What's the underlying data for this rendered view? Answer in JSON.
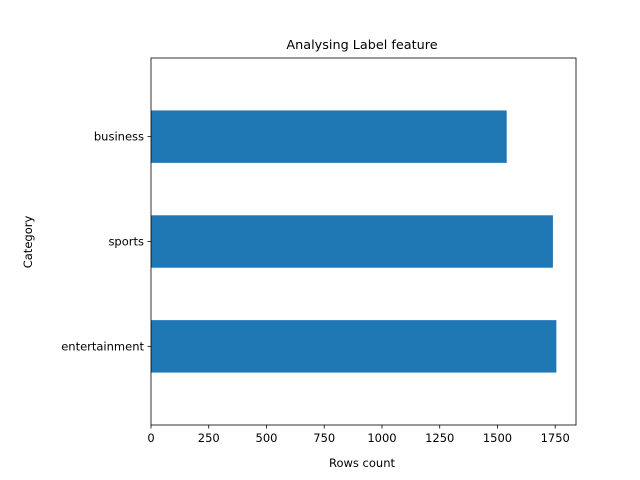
{
  "chart_data": {
    "type": "bar",
    "orientation": "horizontal",
    "title": "Analysing Label feature",
    "xlabel": "Rows count",
    "ylabel": "Category",
    "categories": [
      "business",
      "sports",
      "entertainment"
    ],
    "values": [
      1540,
      1740,
      1755
    ],
    "xlim": [
      0,
      1840
    ],
    "xticks": [
      0,
      250,
      500,
      750,
      1000,
      1250,
      1500,
      1750
    ],
    "bar_color": "#1f77b4",
    "grid": false,
    "legend": "none"
  }
}
